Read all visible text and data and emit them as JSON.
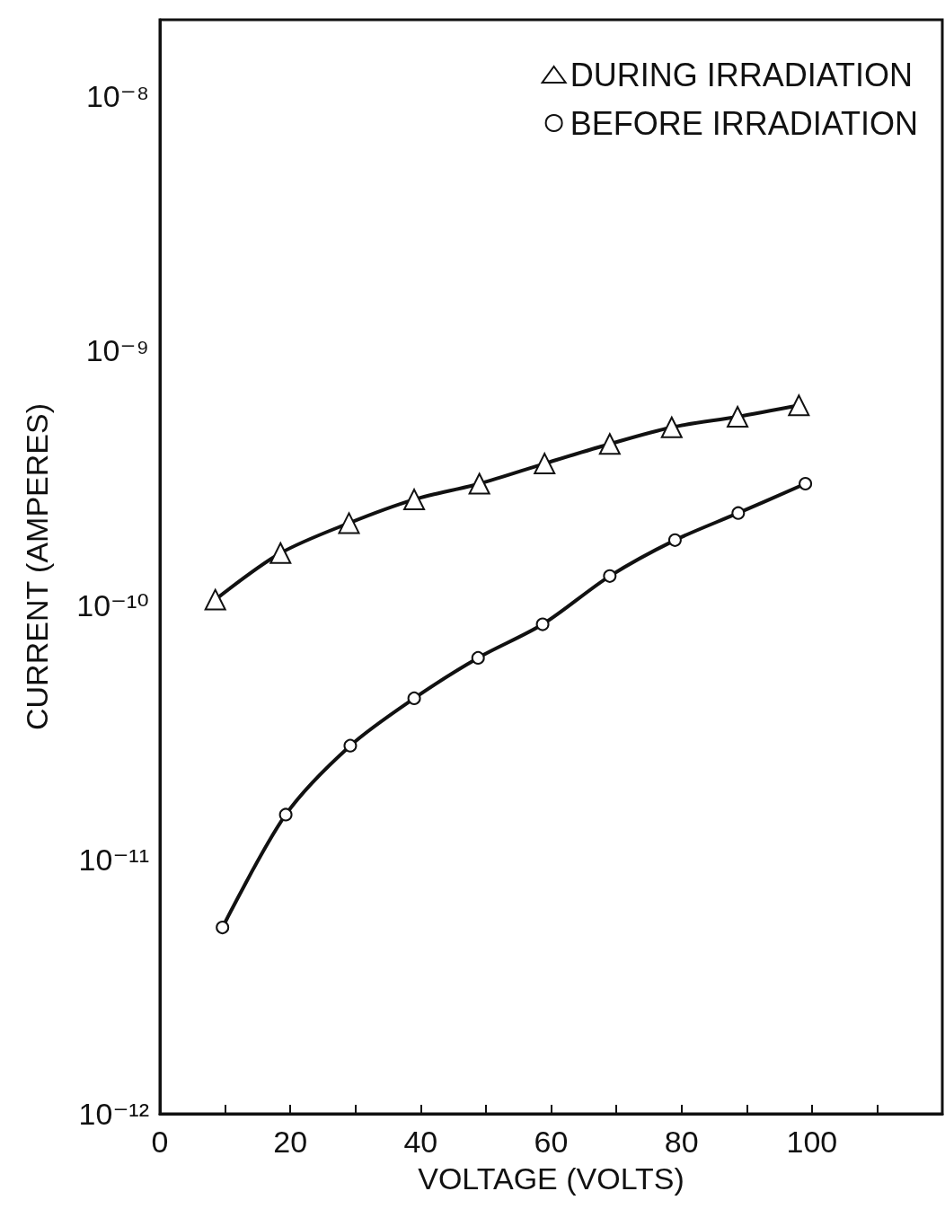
{
  "chart_data": {
    "type": "line",
    "xlabel": "VOLTAGE (VOLTS)",
    "ylabel": "CURRENT (AMPERES)",
    "log": "y",
    "xlim": [
      0,
      120
    ],
    "ylim": [
      1e-12,
      2e-08
    ],
    "xticks": [
      0,
      {
        "value": 10,
        "label": null
      },
      20,
      {
        "value": 30,
        "label": null
      },
      40,
      {
        "value": 50,
        "label": null
      },
      60,
      {
        "value": 70,
        "label": null
      },
      80,
      {
        "value": 90,
        "label": null
      },
      100,
      {
        "value": 110,
        "label": null
      },
      {
        "value": 120,
        "label": null
      }
    ],
    "yticks": [
      {
        "value": 1e-12,
        "label": "10⁻¹²"
      },
      {
        "value": 1e-11,
        "label": "10⁻¹¹"
      },
      {
        "value": 1e-10,
        "label": "10⁻¹⁰"
      },
      {
        "value": 1e-09,
        "label": "10⁻⁹"
      },
      {
        "value": 1e-08,
        "label": "10⁻⁸"
      }
    ],
    "grid": false,
    "legend": "top right",
    "line_style": "solid",
    "series": [
      {
        "name": "DURING IRRADIATION",
        "color": "#111111",
        "marker": "triangle",
        "x": [
          8.5,
          18.5,
          29,
          39,
          49,
          59,
          69,
          78.5,
          88.6,
          98
        ],
        "values": [
          1.05e-10,
          1.6e-10,
          2.1e-10,
          2.6e-10,
          3e-10,
          3.6e-10,
          4.3e-10,
          5e-10,
          5.5e-10,
          6.1e-10
        ]
      },
      {
        "name": "BEFORE IRRADIATION",
        "color": "#111111",
        "marker": "circle",
        "x": [
          9.6,
          19.3,
          29.2,
          39,
          48.8,
          58.7,
          69,
          79,
          88.7,
          99
        ],
        "values": [
          5.4e-12,
          1.5e-11,
          2.8e-11,
          4.3e-11,
          6.2e-11,
          8.4e-11,
          1.3e-10,
          1.8e-10,
          2.3e-10,
          3e-10
        ]
      }
    ]
  }
}
